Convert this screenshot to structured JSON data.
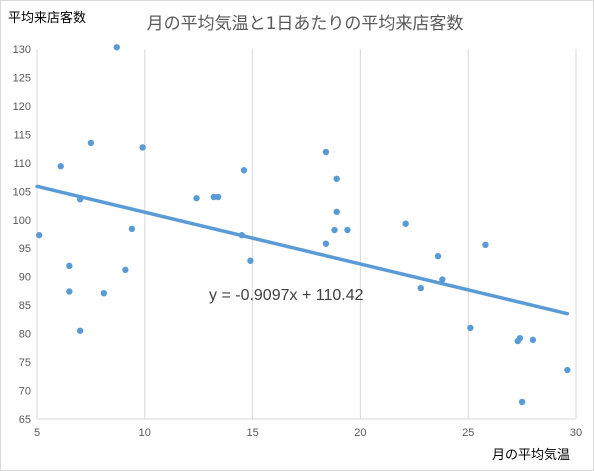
{
  "chart_data": {
    "type": "scatter",
    "title": "月の平均気温と1日あたりの平均来店客数",
    "ylabel": "平均来店客数",
    "xlabel": "月の平均気温",
    "xlim": [
      5,
      30
    ],
    "ylim": [
      65,
      130
    ],
    "xticks": [
      5,
      10,
      15,
      20,
      25,
      30
    ],
    "yticks": [
      65,
      70,
      75,
      80,
      85,
      90,
      95,
      100,
      105,
      110,
      115,
      120,
      125,
      130
    ],
    "grid": "vertical",
    "point_color": "#5b9bd5",
    "trendline": {
      "type": "linear",
      "slope": -0.9097,
      "intercept": 110.42,
      "label": "y = -0.9097x + 110.42",
      "color": "#5b9bd5"
    },
    "points": [
      {
        "x": 5.1,
        "y": 97.3
      },
      {
        "x": 6.1,
        "y": 109.4
      },
      {
        "x": 6.5,
        "y": 91.9
      },
      {
        "x": 6.5,
        "y": 87.4
      },
      {
        "x": 7.0,
        "y": 103.6
      },
      {
        "x": 7.0,
        "y": 80.5
      },
      {
        "x": 7.5,
        "y": 113.5
      },
      {
        "x": 8.1,
        "y": 87.1
      },
      {
        "x": 8.7,
        "y": 130.3
      },
      {
        "x": 9.1,
        "y": 91.2
      },
      {
        "x": 9.4,
        "y": 98.4
      },
      {
        "x": 9.9,
        "y": 112.7
      },
      {
        "x": 12.4,
        "y": 103.8
      },
      {
        "x": 13.2,
        "y": 104.0
      },
      {
        "x": 13.4,
        "y": 104.0
      },
      {
        "x": 14.5,
        "y": 97.3
      },
      {
        "x": 14.6,
        "y": 108.7
      },
      {
        "x": 14.9,
        "y": 92.8
      },
      {
        "x": 18.4,
        "y": 111.9
      },
      {
        "x": 18.4,
        "y": 95.8
      },
      {
        "x": 18.8,
        "y": 98.2
      },
      {
        "x": 18.9,
        "y": 107.2
      },
      {
        "x": 18.9,
        "y": 101.4
      },
      {
        "x": 19.4,
        "y": 98.2
      },
      {
        "x": 22.1,
        "y": 99.3
      },
      {
        "x": 22.8,
        "y": 88.0
      },
      {
        "x": 23.6,
        "y": 93.6
      },
      {
        "x": 23.8,
        "y": 89.5
      },
      {
        "x": 25.1,
        "y": 81.0
      },
      {
        "x": 25.8,
        "y": 95.6
      },
      {
        "x": 27.3,
        "y": 78.7
      },
      {
        "x": 27.4,
        "y": 79.2
      },
      {
        "x": 27.5,
        "y": 68.0
      },
      {
        "x": 28.0,
        "y": 78.9
      },
      {
        "x": 29.6,
        "y": 73.6
      }
    ]
  }
}
